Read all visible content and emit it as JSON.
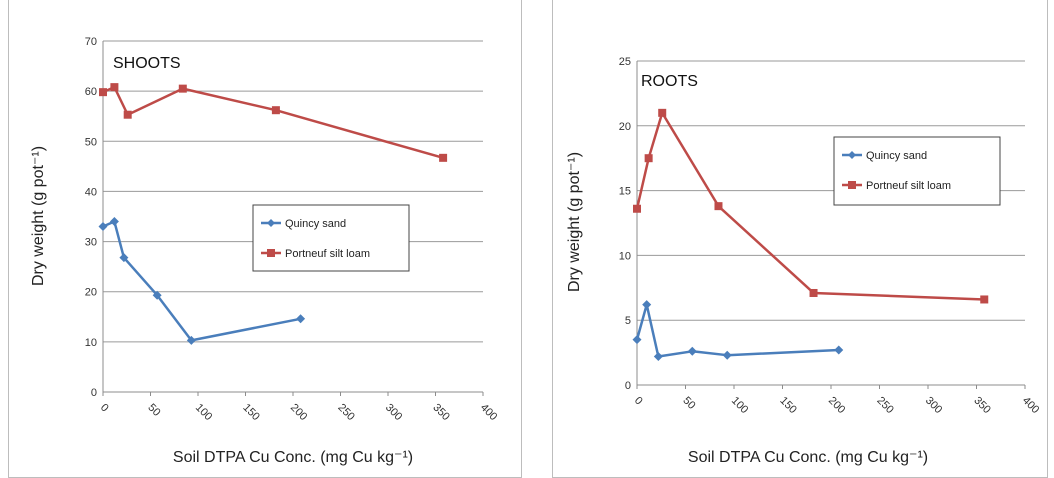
{
  "chart_data": [
    {
      "type": "line",
      "title": "SHOOTS",
      "xlabel": "Soil DTPA Cu Conc. (mg Cu kg⁻¹)",
      "ylabel": "Dry weight (g pot⁻¹)",
      "xlim": [
        0,
        400
      ],
      "ylim": [
        0,
        70
      ],
      "xticks": [
        "0",
        "50",
        "100",
        "150",
        "200",
        "250",
        "300",
        "350",
        "400"
      ],
      "yticks": [
        "0",
        "10",
        "20",
        "30",
        "40",
        "50",
        "60",
        "70"
      ],
      "grid": true,
      "legend": "middle-right",
      "series": [
        {
          "name": "Quincy sand",
          "color": "#4a7ebb",
          "marker": "diamond",
          "x": [
            0,
            12,
            22,
            57,
            93,
            208
          ],
          "y": [
            33,
            34,
            26.8,
            19.3,
            10.3,
            14.6
          ]
        },
        {
          "name": "Portneuf silt loam",
          "color": "#be4b48",
          "marker": "square",
          "x": [
            0,
            12,
            26,
            84,
            182,
            358
          ],
          "y": [
            59.8,
            60.8,
            55.3,
            60.5,
            56.2,
            46.7
          ]
        }
      ]
    },
    {
      "type": "line",
      "title": "ROOTS",
      "xlabel": "Soil DTPA Cu Conc. (mg Cu kg⁻¹)",
      "ylabel": "Dry weight (g pot⁻¹)",
      "xlim": [
        0,
        400
      ],
      "ylim": [
        0,
        25
      ],
      "xticks": [
        "0",
        "50",
        "100",
        "150",
        "200",
        "250",
        "300",
        "350",
        "400"
      ],
      "yticks": [
        "0",
        "5",
        "10",
        "15",
        "20",
        "25"
      ],
      "grid": true,
      "legend": "top-right",
      "series": [
        {
          "name": "Quincy sand",
          "color": "#4a7ebb",
          "marker": "diamond",
          "x": [
            0,
            10,
            22,
            57,
            93,
            208
          ],
          "y": [
            3.5,
            6.2,
            2.2,
            2.6,
            2.3,
            2.7
          ]
        },
        {
          "name": "Portneuf silt loam",
          "color": "#be4b48",
          "marker": "square",
          "x": [
            0,
            12,
            26,
            84,
            182,
            358
          ],
          "y": [
            13.6,
            17.5,
            21,
            13.8,
            7.1,
            6.6
          ]
        }
      ]
    }
  ]
}
